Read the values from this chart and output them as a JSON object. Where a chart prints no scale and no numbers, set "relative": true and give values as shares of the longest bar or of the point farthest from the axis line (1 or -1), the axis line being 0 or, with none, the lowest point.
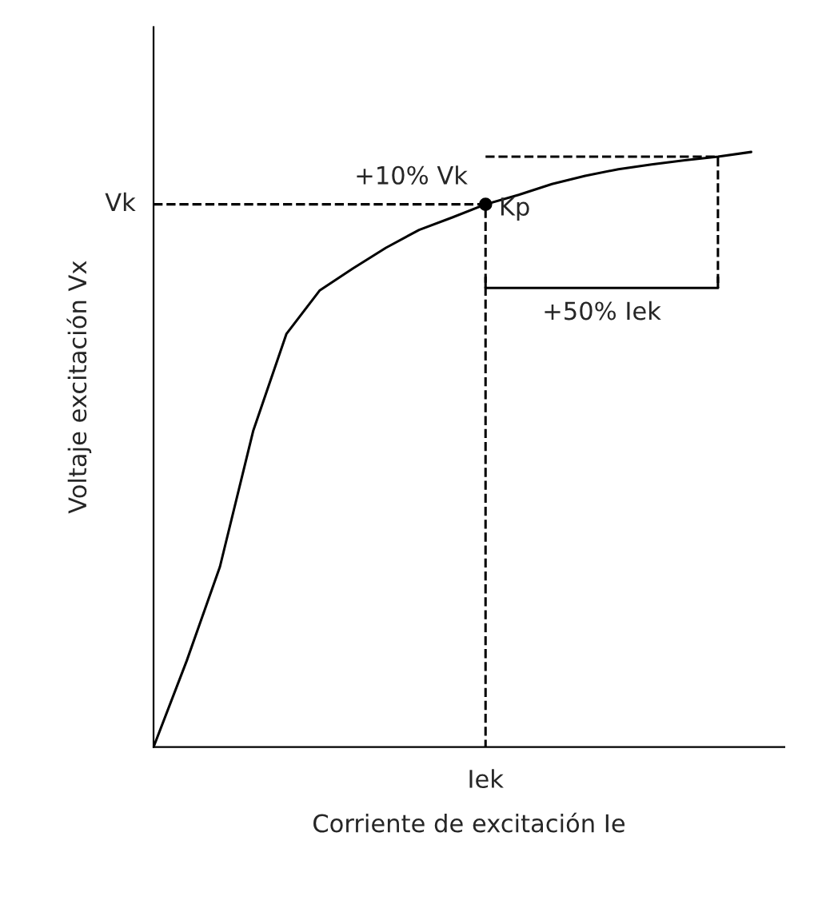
{
  "chart_data": {
    "type": "line",
    "relative": true,
    "xlabel": "Corriente de excitación Ie",
    "ylabel": "Voltaje excitación Vx",
    "categories": [
      null,
      null,
      null,
      null,
      null,
      null,
      null,
      null,
      null,
      null,
      null,
      null,
      null,
      null,
      null,
      null,
      null,
      null,
      null
    ],
    "series": [
      {
        "color": "#000000",
        "line_style": "solid",
        "values": [
          0,
          0.145,
          0.303,
          0.531,
          0.694,
          0.767,
          0.804,
          0.839,
          0.869,
          0.89,
          0.912,
          0.928,
          0.946,
          0.96,
          0.971,
          0.979,
          0.986,
          0.992,
          1.0
        ]
      }
    ],
    "annotations": [
      "Vk",
      "Kp",
      "+10% Vk",
      "+50% Iek",
      "Iek"
    ]
  }
}
